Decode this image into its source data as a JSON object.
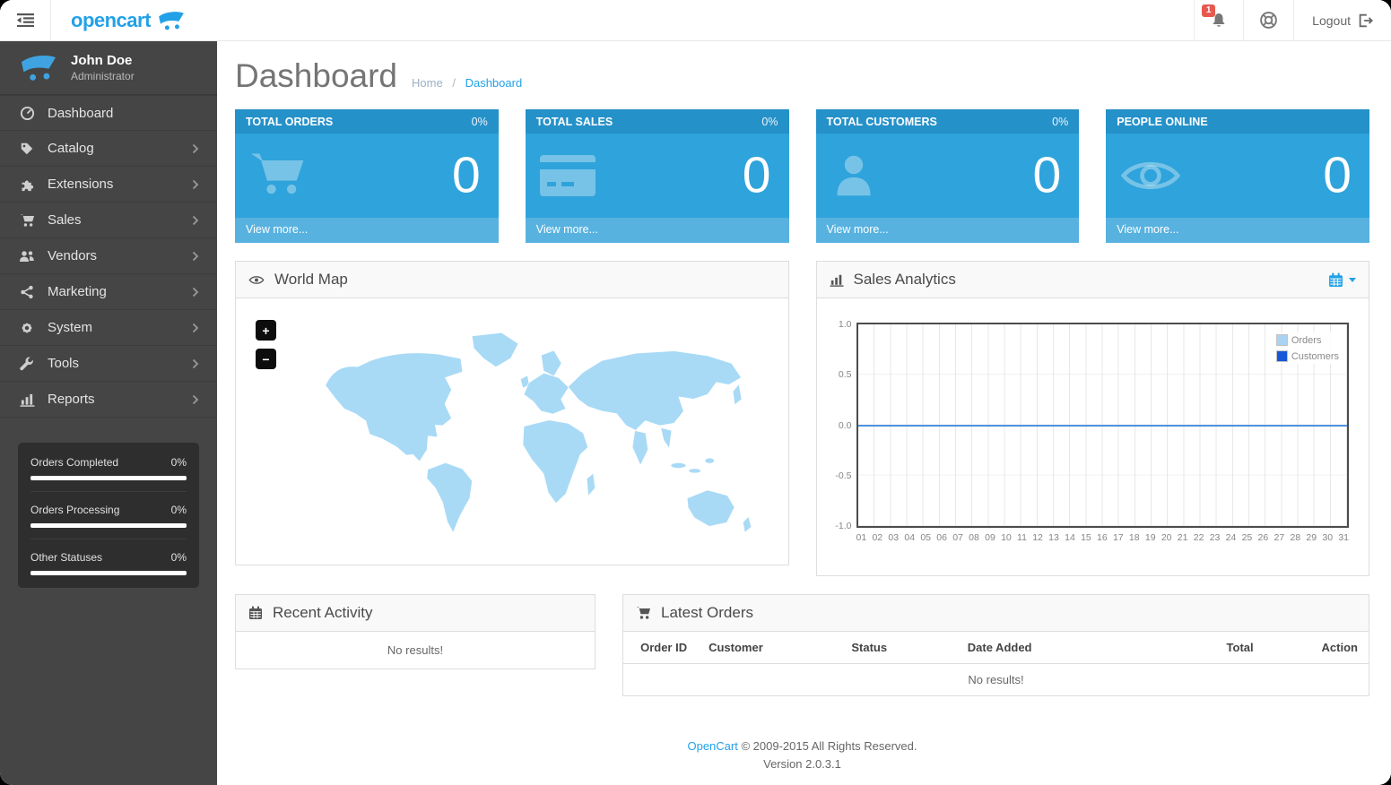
{
  "topbar": {
    "logo_text": "opencart",
    "notification_count": "1",
    "logout_label": "Logout"
  },
  "sidebar": {
    "user": {
      "name": "John Doe",
      "role": "Administrator"
    },
    "items": [
      {
        "label": "Dashboard",
        "icon": "dashboard-icon",
        "has_children": false
      },
      {
        "label": "Catalog",
        "icon": "tag-icon",
        "has_children": true
      },
      {
        "label": "Extensions",
        "icon": "puzzle-icon",
        "has_children": true
      },
      {
        "label": "Sales",
        "icon": "cart-icon",
        "has_children": true
      },
      {
        "label": "Vendors",
        "icon": "users-icon",
        "has_children": true
      },
      {
        "label": "Marketing",
        "icon": "share-icon",
        "has_children": true
      },
      {
        "label": "System",
        "icon": "gear-icon",
        "has_children": true
      },
      {
        "label": "Tools",
        "icon": "wrench-icon",
        "has_children": true
      },
      {
        "label": "Reports",
        "icon": "bar-chart-icon",
        "has_children": true
      }
    ],
    "stats": [
      {
        "label": "Orders Completed",
        "value": "0%"
      },
      {
        "label": "Orders Processing",
        "value": "0%"
      },
      {
        "label": "Other Statuses",
        "value": "0%"
      }
    ]
  },
  "page": {
    "title": "Dashboard",
    "breadcrumb": [
      "Home",
      "Dashboard"
    ]
  },
  "tiles": [
    {
      "title": "TOTAL ORDERS",
      "percent": "0%",
      "value": "0",
      "link": "View more...",
      "icon": "cart-icon"
    },
    {
      "title": "TOTAL SALES",
      "percent": "0%",
      "value": "0",
      "link": "View more...",
      "icon": "credit-card-icon"
    },
    {
      "title": "TOTAL CUSTOMERS",
      "percent": "0%",
      "value": "0",
      "link": "View more...",
      "icon": "user-icon"
    },
    {
      "title": "PEOPLE ONLINE",
      "percent": "",
      "value": "0",
      "link": "View more...",
      "icon": "eye-icon"
    }
  ],
  "world_map": {
    "title": "World Map",
    "zoom_in": "+",
    "zoom_out": "−"
  },
  "sales_analytics": {
    "title": "Sales Analytics",
    "chart_data": {
      "type": "line",
      "title": "Sales Analytics",
      "x": [
        "01",
        "02",
        "03",
        "04",
        "05",
        "06",
        "07",
        "08",
        "09",
        "10",
        "11",
        "12",
        "13",
        "14",
        "15",
        "16",
        "17",
        "18",
        "19",
        "20",
        "21",
        "22",
        "23",
        "24",
        "25",
        "26",
        "27",
        "28",
        "29",
        "30",
        "31"
      ],
      "series": [
        {
          "name": "Orders",
          "color": "#A9D2F3",
          "values": [
            0,
            0,
            0,
            0,
            0,
            0,
            0,
            0,
            0,
            0,
            0,
            0,
            0,
            0,
            0,
            0,
            0,
            0,
            0,
            0,
            0,
            0,
            0,
            0,
            0,
            0,
            0,
            0,
            0,
            0,
            0
          ]
        },
        {
          "name": "Customers",
          "color": "#1757D8",
          "values": [
            0,
            0,
            0,
            0,
            0,
            0,
            0,
            0,
            0,
            0,
            0,
            0,
            0,
            0,
            0,
            0,
            0,
            0,
            0,
            0,
            0,
            0,
            0,
            0,
            0,
            0,
            0,
            0,
            0,
            0,
            0
          ]
        }
      ],
      "ylim": [
        -1.0,
        1.0
      ],
      "yticks": [
        "1.0",
        "0.5",
        "0.0",
        "-0.5",
        "-1.0"
      ],
      "xlabel": "",
      "ylabel": "",
      "grid": true,
      "legend_position": "top-right",
      "line_color": "#4E93DE"
    }
  },
  "recent_activity": {
    "title": "Recent Activity",
    "empty": "No results!"
  },
  "latest_orders": {
    "title": "Latest Orders",
    "columns": [
      "Order ID",
      "Customer",
      "Status",
      "Date Added",
      "Total",
      "Action"
    ],
    "empty": "No results!"
  },
  "footer": {
    "link": "OpenCart",
    "text": " © 2009-2015 All Rights Reserved.",
    "version": "Version 2.0.3.1"
  },
  "icons": {
    "menu_toggle": "dedent-icon",
    "notifications": "bell-icon",
    "support": "life-ring-icon",
    "logout": "sign-out-icon",
    "brand": "opencart-cart-icon",
    "world_map_header": "eye-icon",
    "sales_analytics_header": "bar-chart-icon",
    "sales_analytics_range": "calendar-icon",
    "recent_activity_header": "calendar-icon",
    "latest_orders_header": "cart-icon"
  },
  "colors": {
    "accent_blue": "#23A1E7",
    "tile_header_blue": "#2591C9",
    "tile_body_blue": "#2FA3DB",
    "tile_footer_blue": "#58B2E0",
    "sidebar_bg": "#454545",
    "sidebar_panel_bg": "#2E2E2E",
    "badge_red": "#E7594F",
    "map_fill": "#A8DAF6",
    "chart_line": "#4E93DE"
  }
}
